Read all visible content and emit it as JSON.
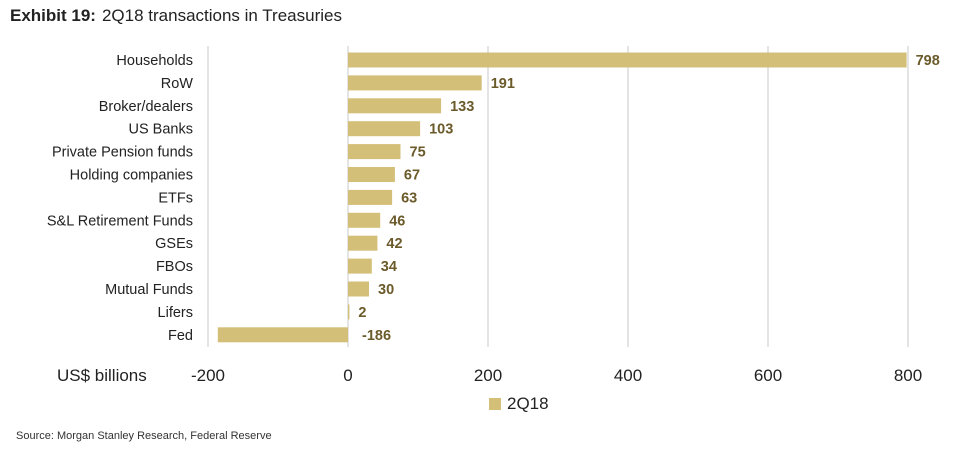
{
  "title": {
    "exhibit": "Exhibit 19:",
    "text": "2Q18 transactions in Treasuries"
  },
  "colors": {
    "bar": "#d4bf78",
    "grid": "#c8c8c8",
    "value_label": "#6b5a2a"
  },
  "chart_data": {
    "type": "bar",
    "orientation": "horizontal",
    "categories": [
      "Households",
      "RoW",
      "Broker/dealers",
      "US Banks",
      "Private Pension funds",
      "Holding companies",
      "ETFs",
      "S&L Retirement Funds",
      "GSEs",
      "FBOs",
      "Mutual Funds",
      "Lifers",
      "Fed"
    ],
    "series": [
      {
        "name": "2Q18",
        "values": [
          798,
          191,
          133,
          103,
          75,
          67,
          63,
          46,
          42,
          34,
          30,
          2,
          -186
        ]
      }
    ],
    "xlabel": "US$ billions",
    "xlim": [
      -200,
      800
    ],
    "xticks": [
      -200,
      0,
      200,
      400,
      600,
      800
    ],
    "grid": true,
    "legend": "bottom"
  },
  "source": "Source: Morgan Stanley Research, Federal Reserve"
}
